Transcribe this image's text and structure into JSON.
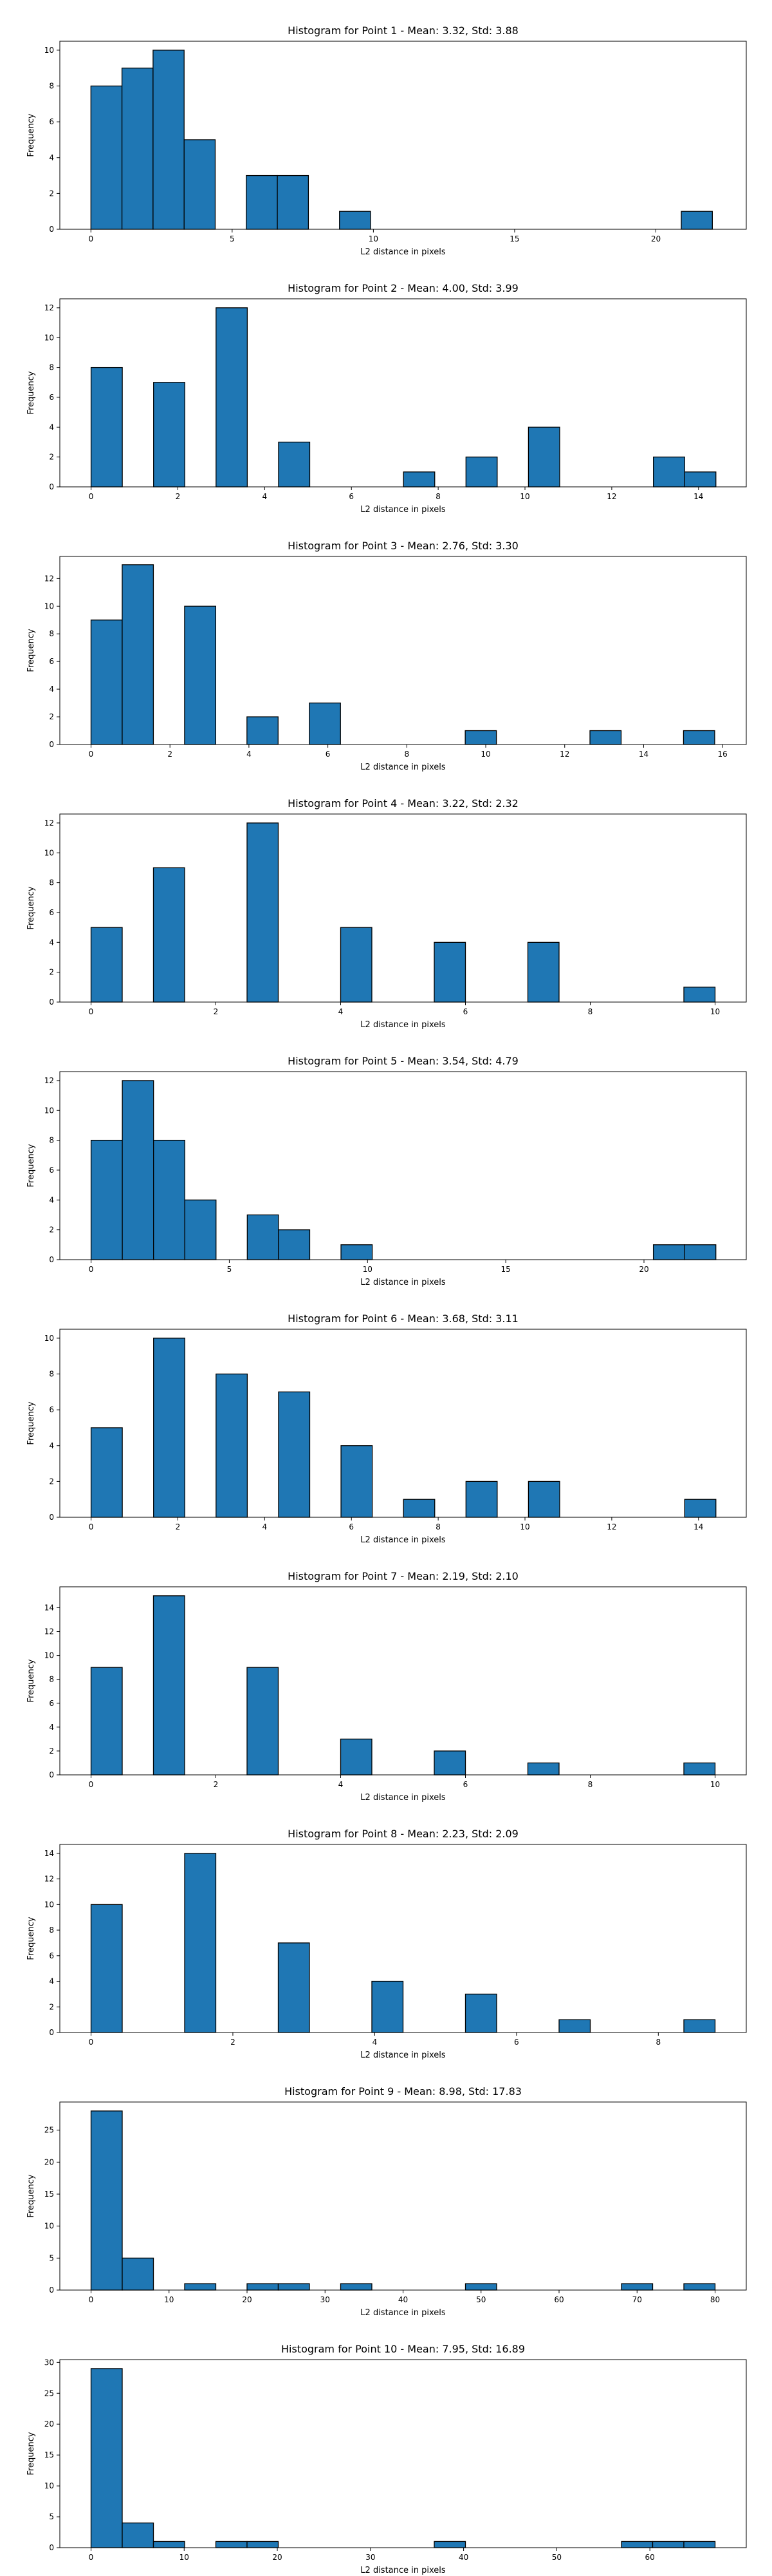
{
  "chart_data": [
    {
      "type": "bar",
      "title": "Histogram for Point 1 - Mean: 3.32, Std: 3.88",
      "xlabel": "L2 distance in pixels",
      "ylabel": "Frequency",
      "xlim": [
        -1.1,
        23.2
      ],
      "ylim": [
        0,
        10.5
      ],
      "xticks": [
        0,
        5,
        10,
        15,
        20
      ],
      "yticks": [
        0,
        2,
        4,
        6,
        8,
        10
      ],
      "bin_edges": [
        0,
        1.1,
        2.2,
        3.3,
        4.4,
        5.5,
        6.6,
        7.7,
        8.8,
        9.9,
        11,
        12.1,
        13.2,
        14.3,
        15.4,
        16.5,
        17.6,
        18.7,
        19.8,
        20.9,
        22
      ],
      "counts": [
        8,
        9,
        10,
        5,
        0,
        3,
        3,
        0,
        1,
        0,
        0,
        0,
        0,
        0,
        0,
        0,
        0,
        0,
        0,
        1
      ]
    },
    {
      "type": "bar",
      "title": "Histogram for Point 2 - Mean: 4.00, Std: 3.99",
      "xlabel": "L2 distance in pixels",
      "ylabel": "Frequency",
      "xlim": [
        -0.72,
        15.1
      ],
      "ylim": [
        0,
        12.6
      ],
      "xticks": [
        0,
        2,
        4,
        6,
        8,
        10,
        12,
        14
      ],
      "yticks": [
        0,
        2,
        4,
        6,
        8,
        10,
        12
      ],
      "bin_edges": [
        0,
        0.72,
        1.44,
        2.16,
        2.88,
        3.6,
        4.32,
        5.04,
        5.76,
        6.48,
        7.2,
        7.92,
        8.64,
        9.36,
        10.08,
        10.8,
        11.52,
        12.24,
        12.96,
        13.68,
        14.4
      ],
      "counts": [
        8,
        0,
        7,
        0,
        12,
        0,
        3,
        0,
        0,
        0,
        1,
        0,
        2,
        0,
        4,
        0,
        0,
        0,
        2,
        1
      ]
    },
    {
      "type": "bar",
      "title": "Histogram for Point 3 - Mean: 2.76, Std: 3.30",
      "xlabel": "L2 distance in pixels",
      "ylabel": "Frequency",
      "xlim": [
        -0.79,
        16.6
      ],
      "ylim": [
        0,
        13.6
      ],
      "xticks": [
        0,
        2,
        4,
        6,
        8,
        10,
        12,
        14,
        16
      ],
      "yticks": [
        0,
        2,
        4,
        6,
        8,
        10,
        12
      ],
      "bin_edges": [
        0,
        0.79,
        1.58,
        2.37,
        3.16,
        3.95,
        4.74,
        5.53,
        6.32,
        7.11,
        7.9,
        8.69,
        9.48,
        10.27,
        11.06,
        11.85,
        12.64,
        13.43,
        14.22,
        15.01,
        15.8
      ],
      "counts": [
        9,
        13,
        0,
        10,
        0,
        2,
        0,
        3,
        0,
        0,
        0,
        0,
        1,
        0,
        0,
        0,
        1,
        0,
        0,
        1
      ]
    },
    {
      "type": "bar",
      "title": "Histogram for Point 4 - Mean: 3.22, Std: 2.32",
      "xlabel": "L2 distance in pixels",
      "ylabel": "Frequency",
      "xlim": [
        -0.5,
        10.5
      ],
      "ylim": [
        0,
        12.6
      ],
      "xticks": [
        0,
        2,
        4,
        6,
        8,
        10
      ],
      "yticks": [
        0,
        2,
        4,
        6,
        8,
        10,
        12
      ],
      "bin_edges": [
        0,
        0.5,
        1,
        1.5,
        2,
        2.5,
        3,
        3.5,
        4,
        4.5,
        5,
        5.5,
        6,
        6.5,
        7,
        7.5,
        8,
        8.5,
        9,
        9.5,
        10
      ],
      "counts": [
        5,
        0,
        9,
        0,
        0,
        12,
        0,
        0,
        5,
        0,
        0,
        4,
        0,
        0,
        4,
        0,
        0,
        0,
        0,
        1
      ]
    },
    {
      "type": "bar",
      "title": "Histogram for Point 5 - Mean: 3.54, Std: 4.79",
      "xlabel": "L2 distance in pixels",
      "ylabel": "Frequency",
      "xlim": [
        -1.13,
        23.7
      ],
      "ylim": [
        0,
        12.6
      ],
      "xticks": [
        0,
        5,
        10,
        15,
        20
      ],
      "yticks": [
        0,
        2,
        4,
        6,
        8,
        10,
        12
      ],
      "bin_edges": [
        0,
        1.13,
        2.26,
        3.39,
        4.52,
        5.65,
        6.78,
        7.91,
        9.04,
        10.17,
        11.3,
        12.43,
        13.56,
        14.69,
        15.82,
        16.95,
        18.08,
        19.21,
        20.34,
        21.47,
        22.6
      ],
      "counts": [
        8,
        12,
        8,
        4,
        0,
        3,
        2,
        0,
        1,
        0,
        0,
        0,
        0,
        0,
        0,
        0,
        0,
        0,
        1,
        1
      ]
    },
    {
      "type": "bar",
      "title": "Histogram for Point 6 - Mean: 3.68, Std: 3.11",
      "xlabel": "L2 distance in pixels",
      "ylabel": "Frequency",
      "xlim": [
        -0.72,
        15.1
      ],
      "ylim": [
        0,
        10.5
      ],
      "xticks": [
        0,
        2,
        4,
        6,
        8,
        10,
        12,
        14
      ],
      "yticks": [
        0,
        2,
        4,
        6,
        8,
        10
      ],
      "bin_edges": [
        0,
        0.72,
        1.44,
        2.16,
        2.88,
        3.6,
        4.32,
        5.04,
        5.76,
        6.48,
        7.2,
        7.92,
        8.64,
        9.36,
        10.08,
        10.8,
        11.52,
        12.24,
        12.96,
        13.68,
        14.4
      ],
      "counts": [
        5,
        0,
        10,
        0,
        8,
        0,
        7,
        0,
        4,
        0,
        1,
        0,
        2,
        0,
        2,
        0,
        0,
        0,
        0,
        1
      ]
    },
    {
      "type": "bar",
      "title": "Histogram for Point 7 - Mean: 2.19, Std: 2.10",
      "xlabel": "L2 distance in pixels",
      "ylabel": "Frequency",
      "xlim": [
        -0.5,
        10.5
      ],
      "ylim": [
        0,
        15.75
      ],
      "xticks": [
        0,
        2,
        4,
        6,
        8,
        10
      ],
      "yticks": [
        0,
        2,
        4,
        6,
        8,
        10,
        12,
        14
      ],
      "bin_edges": [
        0,
        0.5,
        1,
        1.5,
        2,
        2.5,
        3,
        3.5,
        4,
        4.5,
        5,
        5.5,
        6,
        6.5,
        7,
        7.5,
        8,
        8.5,
        9,
        9.5,
        10
      ],
      "counts": [
        9,
        0,
        15,
        0,
        0,
        9,
        0,
        0,
        3,
        0,
        0,
        2,
        0,
        0,
        1,
        0,
        0,
        0,
        0,
        1
      ]
    },
    {
      "type": "bar",
      "title": "Histogram for Point 8 - Mean: 2.23, Std: 2.09",
      "xlabel": "L2 distance in pixels",
      "ylabel": "Frequency",
      "xlim": [
        -0.44,
        9.24
      ],
      "ylim": [
        0,
        14.7
      ],
      "xticks": [
        0,
        2,
        4,
        6,
        8
      ],
      "yticks": [
        0,
        2,
        4,
        6,
        8,
        10,
        12,
        14
      ],
      "bin_edges": [
        0,
        0.44,
        0.88,
        1.32,
        1.76,
        2.2,
        2.64,
        3.08,
        3.52,
        3.96,
        4.4,
        4.84,
        5.28,
        5.72,
        6.16,
        6.6,
        7.04,
        7.48,
        7.92,
        8.36,
        8.8
      ],
      "counts": [
        10,
        0,
        0,
        14,
        0,
        0,
        7,
        0,
        0,
        4,
        0,
        0,
        3,
        0,
        0,
        1,
        0,
        0,
        0,
        1
      ]
    },
    {
      "type": "bar",
      "title": "Histogram for Point 9 - Mean: 8.98, Std: 17.83",
      "xlabel": "L2 distance in pixels",
      "ylabel": "Frequency",
      "xlim": [
        -4,
        84
      ],
      "ylim": [
        0,
        29.4
      ],
      "xticks": [
        0,
        10,
        20,
        30,
        40,
        50,
        60,
        70,
        80
      ],
      "yticks": [
        0,
        5,
        10,
        15,
        20,
        25
      ],
      "bin_edges": [
        0,
        4,
        8,
        12,
        16,
        20,
        24,
        28,
        32,
        36,
        40,
        44,
        48,
        52,
        56,
        60,
        64,
        68,
        72,
        76,
        80
      ],
      "counts": [
        28,
        5,
        0,
        1,
        0,
        1,
        1,
        0,
        1,
        0,
        0,
        0,
        1,
        0,
        0,
        0,
        0,
        1,
        0,
        1
      ]
    },
    {
      "type": "bar",
      "title": "Histogram for Point 10 - Mean: 7.95, Std: 16.89",
      "xlabel": "L2 distance in pixels",
      "ylabel": "Frequency",
      "xlim": [
        -3.35,
        70.35
      ],
      "ylim": [
        0,
        30.45
      ],
      "xticks": [
        0,
        10,
        20,
        30,
        40,
        50,
        60
      ],
      "yticks": [
        0,
        5,
        10,
        15,
        20,
        25,
        30
      ],
      "bin_edges": [
        0,
        3.35,
        6.7,
        10.05,
        13.4,
        16.75,
        20.1,
        23.45,
        26.8,
        30.15,
        33.5,
        36.85,
        40.2,
        43.55,
        46.9,
        50.25,
        53.6,
        56.95,
        60.3,
        63.65,
        67
      ],
      "counts": [
        29,
        4,
        1,
        0,
        1,
        1,
        0,
        0,
        0,
        0,
        0,
        1,
        0,
        0,
        0,
        0,
        0,
        1,
        1,
        1
      ]
    }
  ]
}
